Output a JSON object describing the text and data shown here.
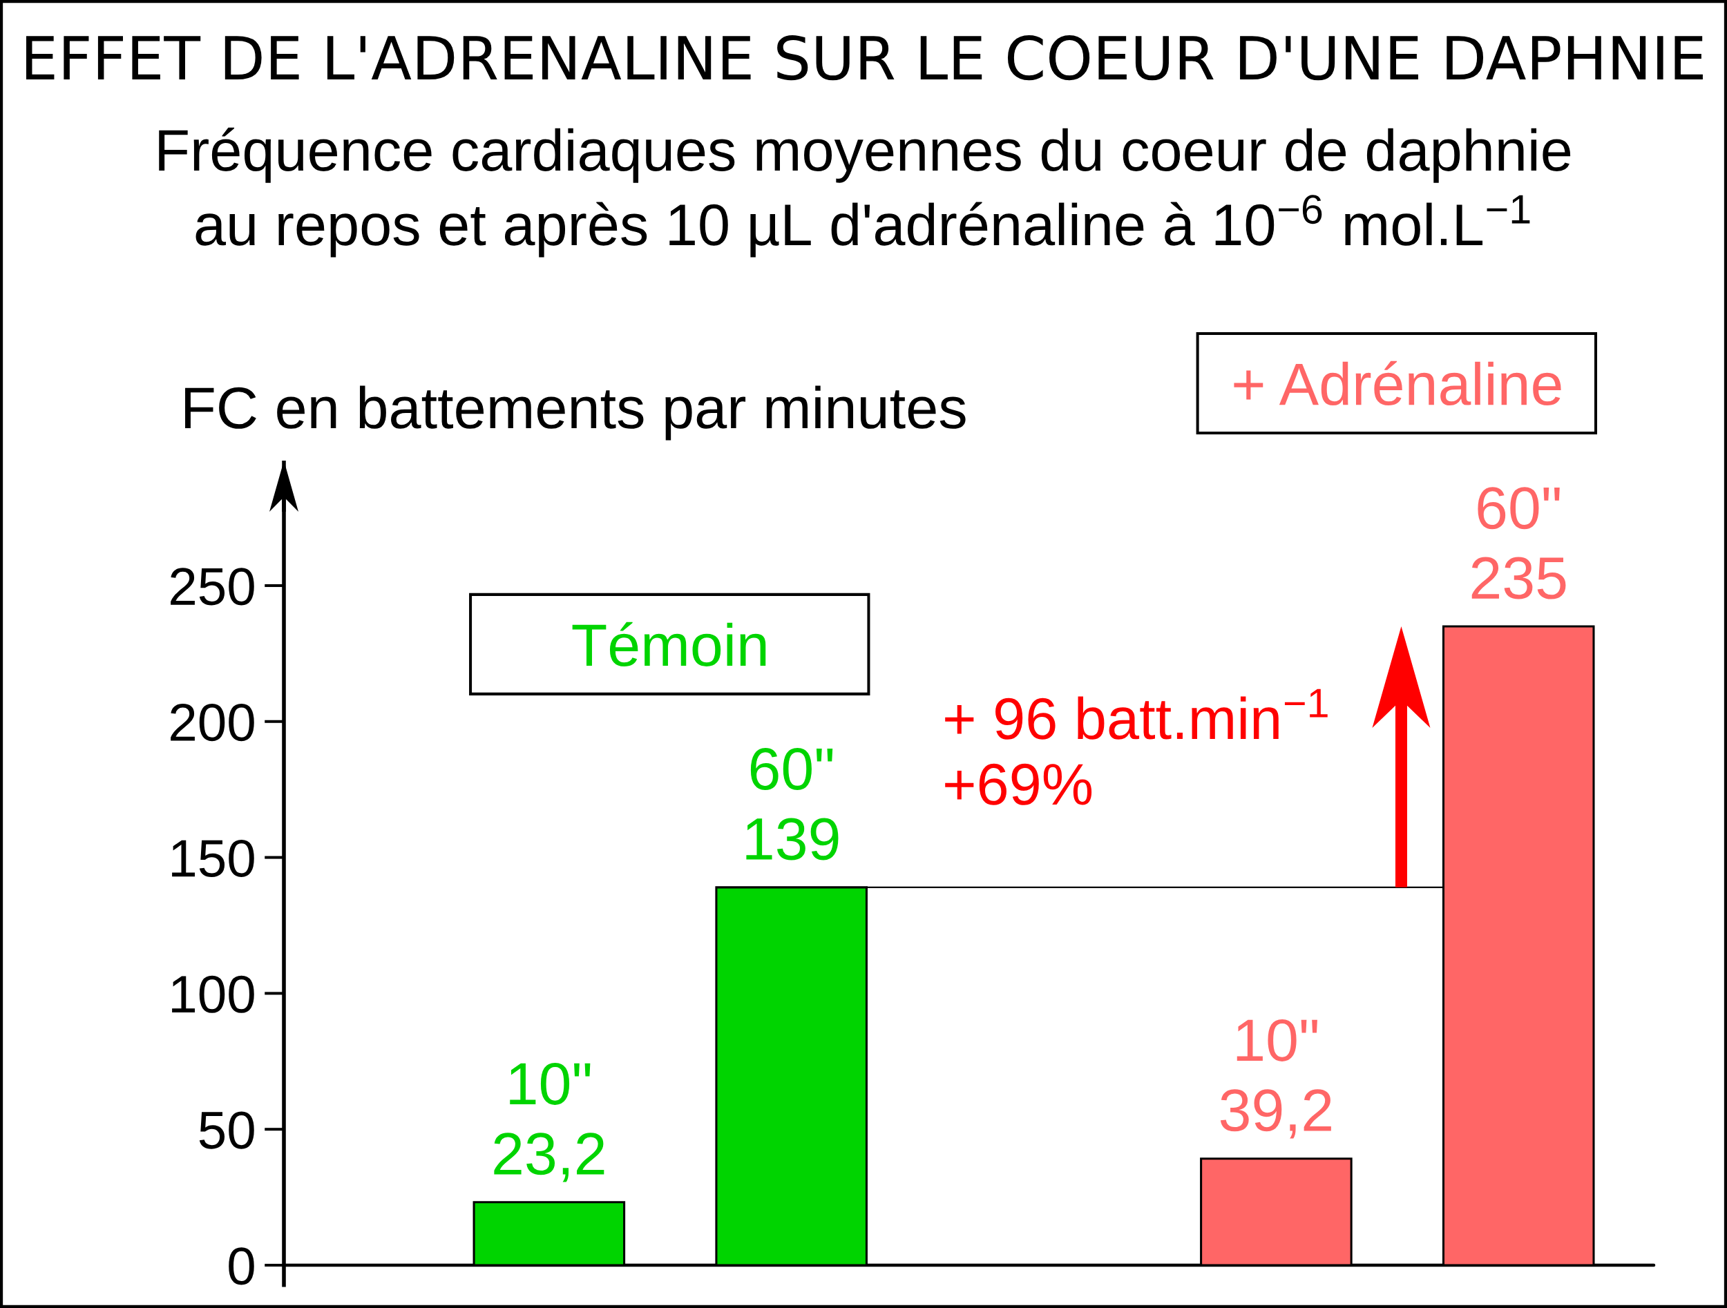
{
  "chart_data": {
    "type": "bar",
    "title": "EFFET DE L'ADRENALINE SUR LE COEUR D'UNE DAPHNIE",
    "subtitle": "Fréquence cardiaques moyennes du coeur de daphnie\nau repos et après 10 µL d'adrénaline à 10$^{−6}$ mol.L$^{−1}$",
    "ylabel": "FC en battements par minutes",
    "categories": [
      "10\"",
      "60\"",
      null,
      "10\"",
      "60\""
    ],
    "series": [
      {
        "name": "Témoin",
        "color": "#00d400",
        "values": [
          23.2,
          139,
          null,
          null,
          null
        ],
        "value_labels": [
          "23,2",
          "139",
          null,
          null,
          null
        ]
      },
      {
        "name": "+ Adrénaline",
        "color": "#ff6666",
        "values": [
          null,
          null,
          null,
          39.2,
          235
        ],
        "value_labels": [
          null,
          null,
          null,
          "39,2",
          "235"
        ]
      }
    ],
    "ylim": [
      -8,
      296
    ],
    "yticks": [
      0,
      50,
      100,
      150,
      200,
      250
    ],
    "ref_lines": [
      {
        "axis": "y",
        "value": 139,
        "color": "#000000"
      }
    ],
    "annotations": [
      "+ 96 batt.min$^{−1}$\n+69%"
    ]
  }
}
